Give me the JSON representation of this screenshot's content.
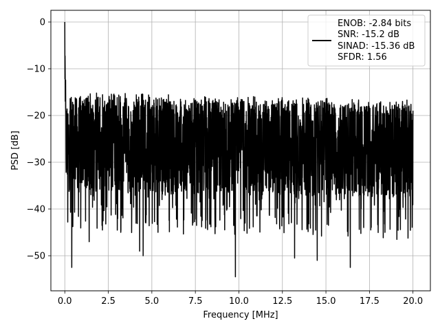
{
  "chart_data": {
    "type": "line",
    "title": "",
    "xlabel": "Frequency [MHz]",
    "ylabel": "PSD [dB]",
    "xlim": [
      -0.8,
      21.0
    ],
    "ylim": [
      -57.5,
      2.5
    ],
    "xticks": [
      0.0,
      2.5,
      5.0,
      7.5,
      10.0,
      12.5,
      15.0,
      17.5,
      20.0
    ],
    "xtick_labels": [
      "0.0",
      "2.5",
      "5.0",
      "7.5",
      "10.0",
      "12.5",
      "15.0",
      "17.5",
      "20.0"
    ],
    "yticks": [
      0,
      -10,
      -20,
      -30,
      -40,
      -50
    ],
    "ytick_labels": [
      "0",
      "−10",
      "−20",
      "−30",
      "−40",
      "−50"
    ],
    "grid": true,
    "legend_position": "top-right",
    "series": [
      {
        "color": "#000000",
        "x_range": [
          0.0,
          20.0
        ],
        "peak": {
          "x": 0.0,
          "y": 0.0
        },
        "noise_floor_range": [
          -55,
          -13
        ],
        "notable_dips": [
          {
            "x": 0.4,
            "y": -52.5
          },
          {
            "x": 1.4,
            "y": -47
          },
          {
            "x": 4.3,
            "y": -49
          },
          {
            "x": 4.5,
            "y": -50
          },
          {
            "x": 9.8,
            "y": -54.5
          },
          {
            "x": 13.2,
            "y": -50.5
          },
          {
            "x": 14.5,
            "y": -51
          },
          {
            "x": 16.4,
            "y": -52.5
          }
        ]
      }
    ],
    "legend_lines": [
      "ENOB: -2.84 bits",
      "SNR: -15.2 dB",
      "SINAD: -15.36 dB",
      "SFDR: 1.56"
    ]
  }
}
